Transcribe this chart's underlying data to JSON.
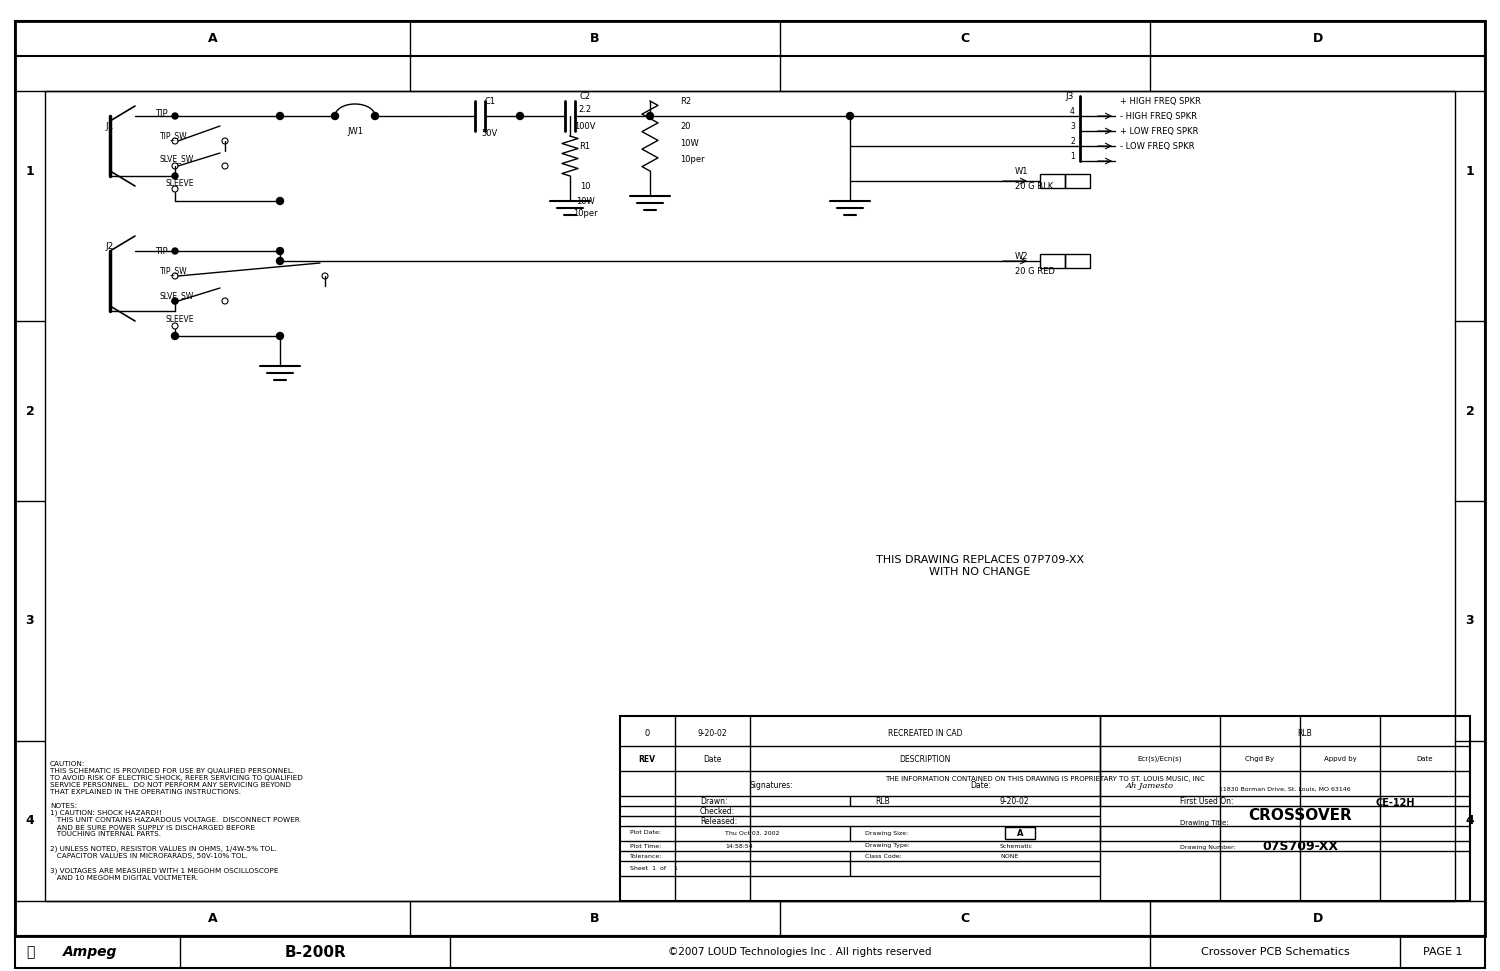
{
  "title": "Ampeg B-200R Crossover 07S709 Schematic",
  "bg_color": "#ffffff",
  "border_color": "#000000",
  "text_color": "#000000",
  "page_width": 15.0,
  "page_height": 9.71,
  "footer_text_left": "B-200R",
  "footer_text_center": "©2007 LOUD Technologies Inc . All rights reserved",
  "footer_text_right_1": "Crossover PCB Schematics",
  "footer_text_right_2": "PAGE 1",
  "col_labels": [
    "A",
    "B",
    "C",
    "D"
  ],
  "row_labels": [
    "1",
    "2",
    "3",
    "4"
  ],
  "note_caution": "CAUTION:\nTHIS SCHEMATIC IS PROVIDED FOR USE BY QUALIFIED PERSONNEL.\nTO AVOID RISK OF ELECTRIC SHOCK, REFER SERVICING TO QUALIFIED\nSERVICE PERSONNEL.  DO NOT PERFORM ANY SERVICING BEYOND\nTHAT EXPLAINED IN THE OPERATING INSTRUCTIONS.\n\nNOTES:\n1) CAUTION: SHOCK HAZARD!!\n   THIS UNIT CONTAINS HAZARDOUS VOLTAGE.  DISCONNECT POWER\n   AND BE SURE POWER SUPPLY IS DISCHARGED BEFORE\n   TOUCHING INTERNAL PARTS.\n\n2) UNLESS NOTED, RESISTOR VALUES IN OHMS, 1/4W-5% TOL.\n   CAPACITOR VALUES IN MICROFARADS, 50V-10% TOL.\n\n3) VOLTAGES ARE MEASURED WITH 1 MEGOHM OSCILLOSCOPE\n   AND 10 MEGOHM DIGITAL VOLTMETER.",
  "drawing_replaces": "THIS DRAWING REPLACES 07P709-XX\nWITH NO CHANGE",
  "tb_rev": "0",
  "tb_date": "9-20-02",
  "tb_desc": "RECREATED IN CAD",
  "tb_rlb": "RLB",
  "tb_drawn": "RLB",
  "tb_drawn_date": "9-20-02",
  "tb_checked": "",
  "tb_released": "",
  "tb_plot_date": "Thu Oct 03, 2002",
  "tb_plot_time": "14:58:54",
  "tb_drawing_size": "A",
  "tb_drawing_type": "Schematic",
  "tb_tolerance": "",
  "tb_class_code": "NONE",
  "tb_sheet": "1",
  "tb_of": "1",
  "tb_ce": "CE-12H",
  "tb_drawing_title": "CROSSOVER",
  "tb_drawing_number": "07S709-XX",
  "tb_address": "11830 Borman Drive, St. Louis, MO 63146",
  "tb_prop": "THE INFORMATION CONTAINED ON THIS DRAWING IS PROPRIETARY TO ST. LOUIS MUSIC, INC"
}
